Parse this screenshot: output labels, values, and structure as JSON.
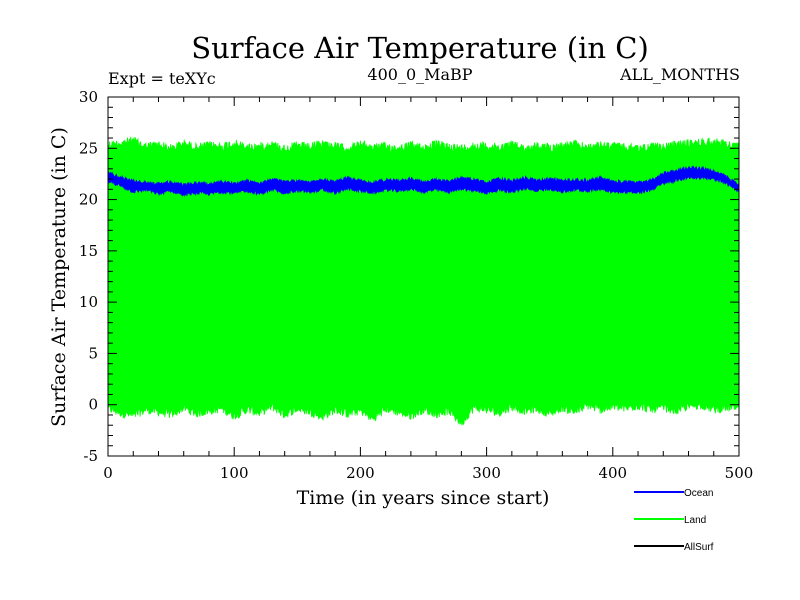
{
  "chart_data": {
    "type": "line",
    "title": "Surface Air Temperature (in C)",
    "subtitle_left": "Expt = teXYc",
    "subtitle_center": "400_0_MaBP",
    "subtitle_right": "ALL_MONTHS",
    "xlabel": "Time (in years since start)",
    "ylabel": "Surface Air Temperature (in C)",
    "xlim": [
      0,
      500
    ],
    "ylim": [
      -5,
      30
    ],
    "x_ticks": [
      0,
      100,
      200,
      300,
      400,
      500
    ],
    "y_ticks": [
      -5,
      0,
      5,
      10,
      15,
      20,
      25,
      30
    ],
    "grid": false,
    "legend_position": "bottom-right",
    "series": [
      {
        "name": "Ocean",
        "color": "#0000ff",
        "x": [
          0,
          10,
          20,
          30,
          40,
          50,
          60,
          70,
          80,
          90,
          100,
          110,
          120,
          130,
          140,
          150,
          160,
          170,
          180,
          190,
          200,
          210,
          220,
          230,
          240,
          250,
          260,
          270,
          280,
          290,
          300,
          310,
          320,
          330,
          340,
          350,
          360,
          370,
          380,
          390,
          400,
          410,
          420,
          430,
          440,
          450,
          460,
          470,
          480,
          490,
          500
        ],
        "y_min": [
          21.6,
          21.2,
          20.6,
          20.8,
          20.4,
          20.7,
          20.3,
          20.5,
          20.4,
          20.6,
          20.5,
          20.7,
          20.4,
          20.8,
          20.5,
          20.7,
          20.6,
          20.8,
          20.5,
          20.9,
          20.7,
          20.5,
          20.8,
          20.7,
          20.9,
          20.6,
          20.8,
          20.6,
          20.9,
          20.7,
          20.5,
          20.8,
          20.6,
          20.9,
          20.7,
          20.9,
          20.6,
          20.8,
          20.7,
          20.9,
          20.6,
          20.6,
          20.5,
          20.8,
          21.4,
          21.7,
          22.0,
          22.0,
          21.8,
          21.4,
          20.7
        ],
        "y_max": [
          22.8,
          22.4,
          22.0,
          21.8,
          21.7,
          21.9,
          21.6,
          21.8,
          21.7,
          21.9,
          21.7,
          22.0,
          21.8,
          22.1,
          21.9,
          22.0,
          21.8,
          22.1,
          21.9,
          22.3,
          22.0,
          21.8,
          22.1,
          22.0,
          22.2,
          21.9,
          22.1,
          21.9,
          22.3,
          22.1,
          21.8,
          22.2,
          22.0,
          22.3,
          22.0,
          22.2,
          22.0,
          22.1,
          22.0,
          22.3,
          21.9,
          21.9,
          21.8,
          22.0,
          22.7,
          23.0,
          23.3,
          23.2,
          22.9,
          22.4,
          21.6
        ]
      },
      {
        "name": "Land",
        "color": "#00ff00",
        "x": [
          0,
          10,
          20,
          30,
          40,
          50,
          60,
          70,
          80,
          90,
          100,
          110,
          120,
          130,
          140,
          150,
          160,
          170,
          180,
          190,
          200,
          210,
          220,
          230,
          240,
          250,
          260,
          270,
          280,
          290,
          300,
          310,
          320,
          330,
          340,
          350,
          360,
          370,
          380,
          390,
          400,
          410,
          420,
          430,
          440,
          450,
          460,
          470,
          480,
          490,
          500
        ],
        "y_min": [
          -0.8,
          -1.2,
          -1.5,
          -0.9,
          -1.1,
          -1.4,
          -0.7,
          -1.3,
          -1.0,
          -0.8,
          -1.5,
          -0.9,
          -1.2,
          -0.6,
          -1.4,
          -0.8,
          -1.1,
          -1.6,
          -0.9,
          -1.3,
          -1.0,
          -1.8,
          -0.8,
          -1.1,
          -1.5,
          -0.9,
          -1.3,
          -1.0,
          -2.2,
          -0.7,
          -0.9,
          -1.2,
          -0.6,
          -1.0,
          -0.8,
          -1.3,
          -0.7,
          -1.1,
          -0.5,
          -0.9,
          -0.6,
          -0.8,
          -0.5,
          -0.9,
          -0.7,
          -1.0,
          -0.6,
          -0.4,
          -0.9,
          -0.7,
          -0.8
        ],
        "y_max": [
          25.8,
          25.9,
          26.2,
          25.6,
          25.8,
          25.4,
          25.9,
          25.5,
          25.7,
          25.6,
          25.9,
          25.5,
          25.6,
          25.8,
          25.4,
          25.7,
          25.5,
          25.9,
          25.6,
          25.4,
          25.8,
          25.5,
          25.6,
          25.4,
          25.7,
          25.5,
          25.8,
          25.6,
          25.4,
          25.7,
          25.6,
          25.5,
          25.8,
          25.4,
          25.6,
          25.5,
          25.7,
          25.8,
          25.5,
          25.7,
          25.6,
          25.5,
          25.4,
          25.6,
          25.5,
          25.8,
          25.9,
          26.0,
          26.1,
          25.8,
          25.6
        ]
      },
      {
        "name": "AllSurf",
        "color": "#000000",
        "x": [],
        "y": []
      }
    ]
  }
}
